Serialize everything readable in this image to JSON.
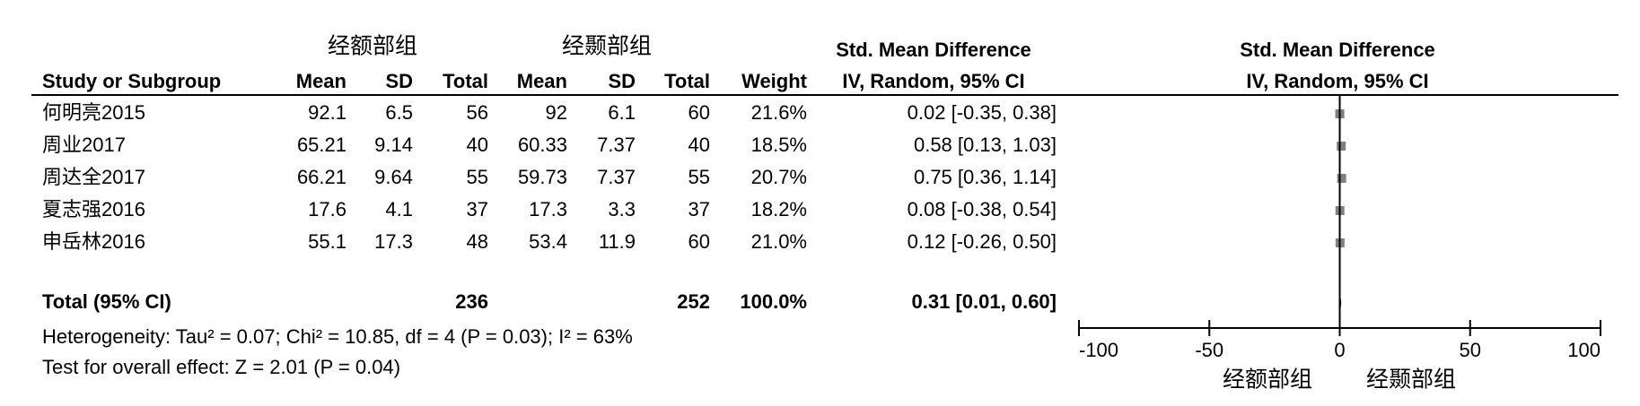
{
  "chart_data": {
    "type": "forest",
    "group_labels": [
      "经额部组",
      "经颞部组"
    ],
    "effect_header": "Std. Mean Difference",
    "method_header": "IV, Random, 95% CI",
    "columns": [
      "Study or Subgroup",
      "Mean",
      "SD",
      "Total",
      "Mean",
      "SD",
      "Total",
      "Weight"
    ],
    "categories": [
      "何明亮2015",
      "周业2017",
      "周达全2017",
      "夏志强2016",
      "申岳林2016"
    ],
    "mean1": [
      92.1,
      65.21,
      66.21,
      17.6,
      55.1
    ],
    "sd1": [
      6.5,
      9.14,
      9.64,
      4.1,
      17.3
    ],
    "total1": [
      56,
      40,
      55,
      37,
      48
    ],
    "mean2": [
      92,
      60.33,
      59.73,
      17.3,
      53.4
    ],
    "sd2": [
      6.1,
      7.37,
      7.37,
      3.3,
      11.9
    ],
    "total2": [
      60,
      40,
      55,
      37,
      60
    ],
    "weight_labels": [
      "21.6%",
      "18.5%",
      "20.7%",
      "18.2%",
      "21.0%"
    ],
    "values": [
      0.02,
      0.58,
      0.75,
      0.08,
      0.12
    ],
    "ci_low": [
      -0.35,
      0.13,
      0.36,
      -0.38,
      -0.26
    ],
    "ci_high": [
      0.38,
      1.03,
      1.14,
      0.54,
      0.5
    ],
    "value_labels": [
      "0.02 [-0.35, 0.38]",
      "0.58 [0.13, 1.03]",
      "0.75 [0.36, 1.14]",
      "0.08 [-0.38, 0.54]",
      "0.12 [-0.26, 0.50]"
    ],
    "total": {
      "label": "Total (95% CI)",
      "total1": 236,
      "total2": 252,
      "weight_label": "100.0%",
      "value": 0.31,
      "ci_low": 0.01,
      "ci_high": 0.6,
      "value_label": "0.31 [0.01, 0.60]"
    },
    "heterogeneity": "Heterogeneity: Tau² = 0.07; Chi² = 10.85, df = 4 (P = 0.03); I² = 63%",
    "overall_effect": "Test for overall effect: Z = 2.01 (P = 0.04)",
    "xlim": [
      -100,
      100
    ],
    "xticks": [
      -100,
      -50,
      0,
      50,
      100
    ],
    "marker_color": "#808080"
  }
}
